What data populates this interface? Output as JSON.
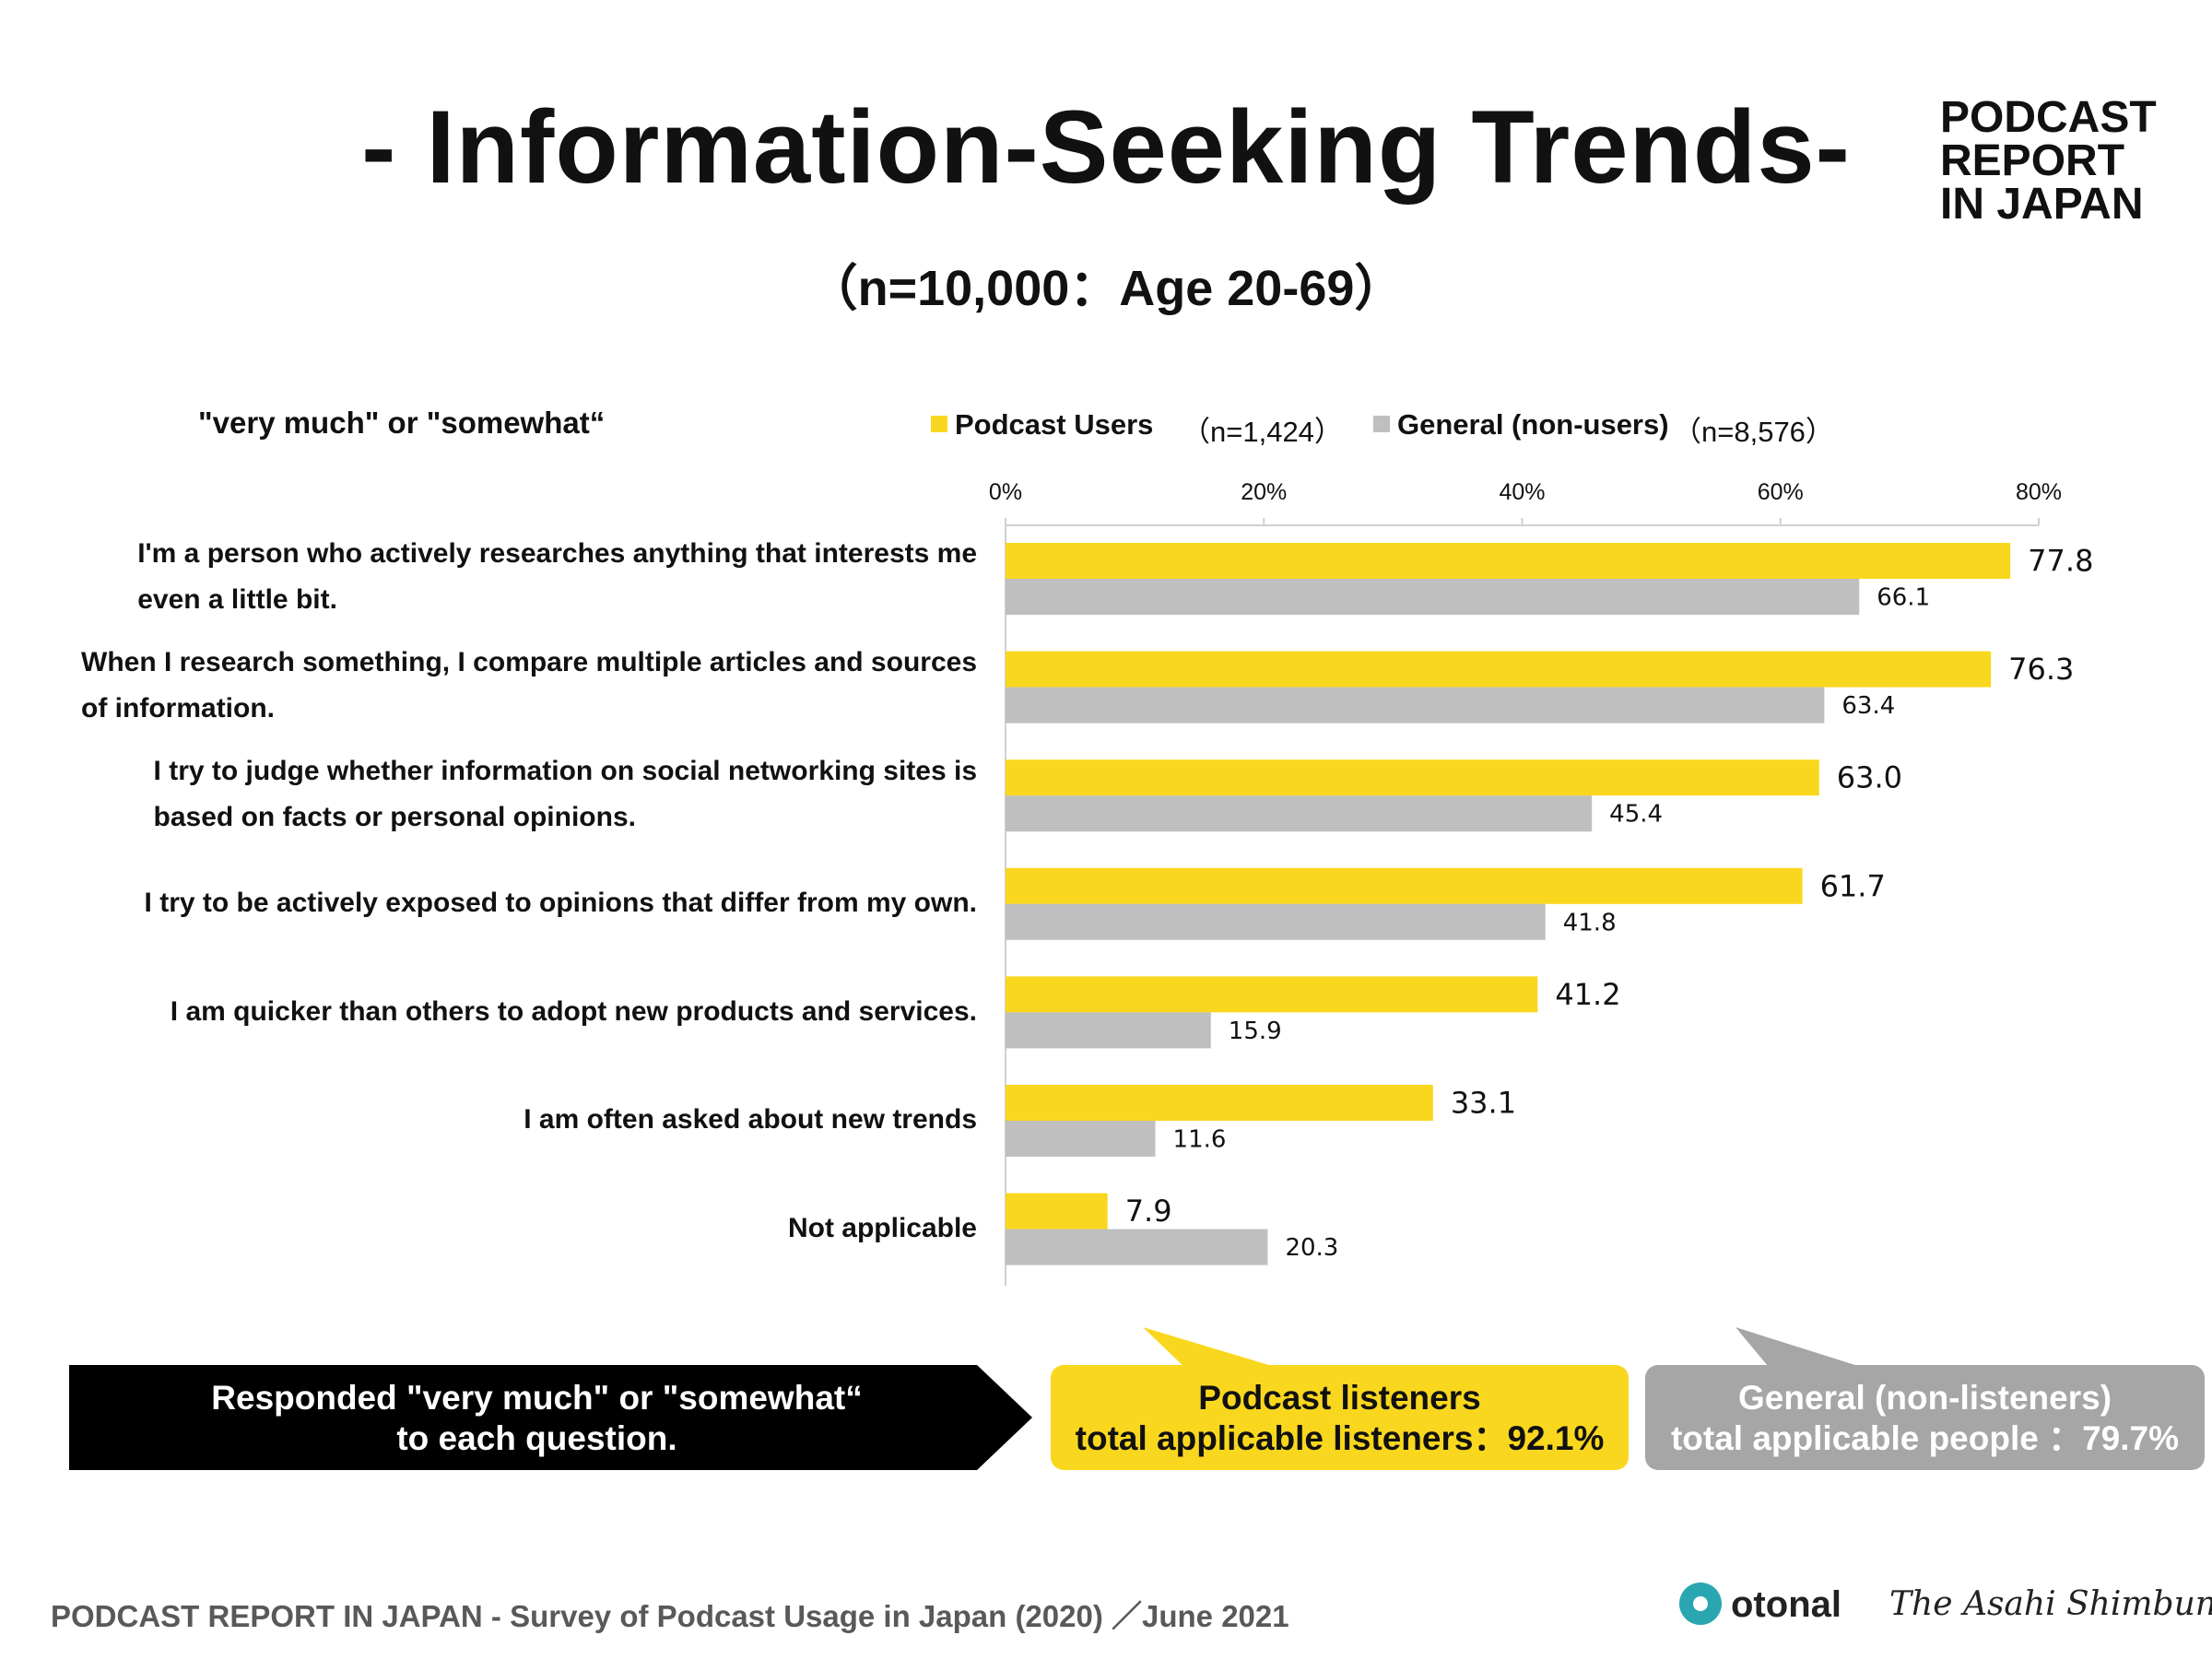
{
  "page": {
    "title": "- Information-Seeking Trends-",
    "subtitle": "（n=10,000：Age 20-69）",
    "logo_lines": [
      "PODCAST",
      "REPORT",
      "IN JAPAN"
    ],
    "legend_heading": "\"very much\" or \"somewhat“",
    "legend": {
      "series1_label": "Podcast Users",
      "series1_n": "（n=1,424）",
      "series2_label": "General (non-users)",
      "series2_n": "（n=8,576）"
    },
    "callouts": {
      "black_line1": "Responded \"very much\" or \"somewhat“",
      "black_line2": "to each question.",
      "yellow_line1": "Podcast listeners",
      "yellow_line2": "total applicable listeners：92.1%",
      "gray_line1": "General (non-listeners)",
      "gray_line2": "total applicable people ：79.7%"
    },
    "footer": "PODCAST REPORT IN JAPAN - Survey of Podcast Usage in Japan (2020) ／June 2021",
    "brand1": "otonal",
    "brand2": "The Asahi Shimbun"
  },
  "colors": {
    "podcast": "#F9D71E",
    "general": "#BFBFBF",
    "axis": "#D0D0D0",
    "callout_black": "#000000",
    "callout_gray": "#A6A6A6"
  },
  "chart_data": {
    "type": "bar",
    "orientation": "horizontal",
    "x_axis": {
      "min": 0,
      "max": 80,
      "ticks": [
        "0%",
        "20%",
        "40%",
        "60%",
        "80%"
      ],
      "tick_values": [
        0,
        20,
        40,
        60,
        80
      ]
    },
    "categories": [
      [
        "I'm a person who actively researches anything that interests me",
        "even a little bit."
      ],
      [
        "When I research something, I compare multiple articles and sources",
        "of information."
      ],
      [
        "I try to judge whether information on social networking sites is",
        "based on facts or personal opinions."
      ],
      [
        "I try to be actively exposed to opinions that differ from my own."
      ],
      [
        "I am quicker than others to adopt new products and services."
      ],
      [
        "I am often asked about new trends"
      ],
      [
        "Not applicable"
      ]
    ],
    "series": [
      {
        "name": "Podcast Users",
        "values": [
          77.8,
          76.3,
          63.0,
          61.7,
          41.2,
          33.1,
          7.9
        ],
        "labels": [
          "77.8",
          "76.3",
          "63.0",
          "61.7",
          "41.2",
          "33.1",
          "7.9"
        ]
      },
      {
        "name": "General (non-users)",
        "values": [
          66.1,
          63.4,
          45.4,
          41.8,
          15.9,
          11.6,
          20.3
        ],
        "labels": [
          "66.1",
          "63.4",
          "45.4",
          "41.8",
          "15.9",
          "11.6",
          "20.3"
        ]
      }
    ]
  }
}
